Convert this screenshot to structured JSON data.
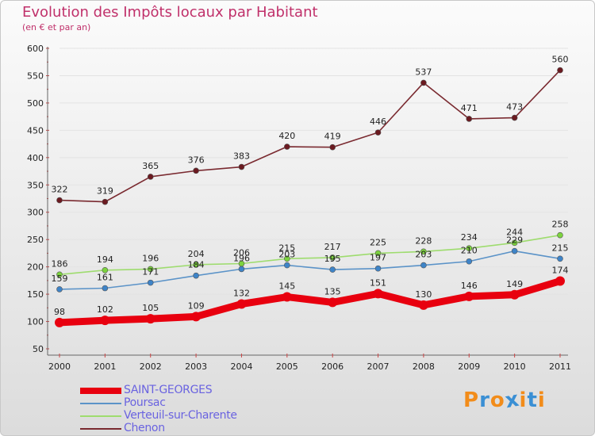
{
  "title": "Evolution des Impôts locaux par Habitant",
  "subtitle": "(en € et par an)",
  "logo": {
    "text": "Proxiti",
    "letter_colors": [
      "#f28c1a",
      "#3a8fd4",
      "#f28c1a",
      "#3a8fd4",
      "#f28c1a",
      "#3a8fd4",
      "#f28c1a"
    ]
  },
  "colors": {
    "title": "#c0306a",
    "legend_text": "#6a63e0",
    "grid": "#e3e3e3"
  },
  "chart_data": {
    "type": "line",
    "title": "Evolution des Impôts locaux par Habitant",
    "ylabel": "(en € et par an)",
    "xlabel": "",
    "ylim": [
      50,
      600
    ],
    "yticks": [
      50,
      100,
      150,
      200,
      250,
      300,
      350,
      400,
      450,
      500,
      550,
      600
    ],
    "categories": [
      "2000",
      "2001",
      "2002",
      "2003",
      "2004",
      "2005",
      "2006",
      "2007",
      "2008",
      "2009",
      "2010",
      "2011"
    ],
    "legend_position": "bottom-left",
    "series": [
      {
        "name": "SAINT-GEORGES",
        "color": "#e8000f",
        "marker_fill": "#e8000f",
        "style": "thick",
        "values": [
          98,
          102,
          105,
          109,
          132,
          145,
          135,
          151,
          130,
          146,
          149,
          174
        ],
        "labels": [
          "98",
          "102",
          "105",
          "109",
          "132",
          "145",
          "135",
          "151",
          "130",
          "146",
          "149",
          "174"
        ]
      },
      {
        "name": "Poursac",
        "color": "#5b93c8",
        "marker_fill": "#3e84c8",
        "style": "thin",
        "values": [
          159,
          161,
          171,
          184,
          196,
          203,
          195,
          197,
          203,
          210,
          229,
          215
        ],
        "labels": [
          "159",
          "161",
          "171",
          "184",
          "196",
          "203",
          "195",
          "197",
          "203",
          "210",
          "229",
          "215"
        ]
      },
      {
        "name": "Verteuil-sur-Charente",
        "color": "#9edc6e",
        "marker_fill": "#7cd33e",
        "style": "thin",
        "values": [
          186,
          194,
          196,
          204,
          206,
          215,
          217,
          225,
          228,
          234,
          244,
          258
        ],
        "labels": [
          "186",
          "194",
          "196",
          "204",
          "206",
          "215",
          "217",
          "225",
          "228",
          "234",
          "244",
          "258"
        ]
      },
      {
        "name": "Chenon",
        "color": "#7a2a30",
        "marker_fill": "#6b1a20",
        "style": "thin",
        "values": [
          322,
          319,
          365,
          376,
          383,
          420,
          419,
          446,
          537,
          471,
          473,
          560
        ],
        "labels": [
          "322",
          "319",
          "365",
          "376",
          "383",
          "420",
          "419",
          "446",
          "537",
          "471",
          "473",
          "560"
        ]
      }
    ]
  }
}
